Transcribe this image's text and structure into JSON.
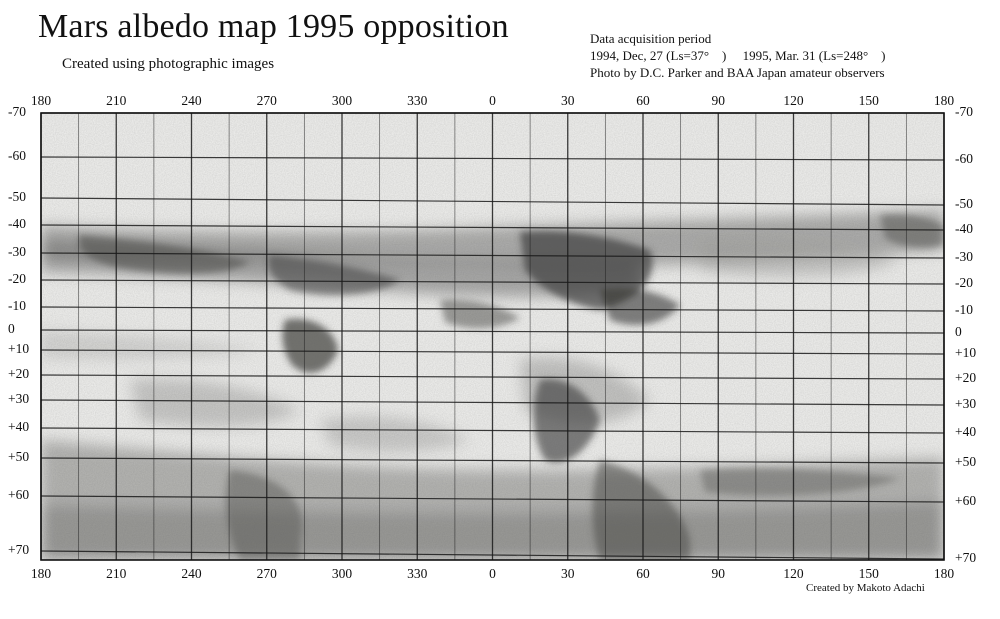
{
  "title": "Mars albedo map 1995   opposition",
  "subtitle": "Created using photographic images",
  "info": {
    "line1": "Data acquisition period",
    "line2": "1994, Dec, 27 (Ls=37°　) 　1995, Mar. 31 (Ls=248°　)",
    "line3": "Photo by D.C. Parker and BAA  Japan amateur observers"
  },
  "credit": "Created by Makoto Adachi",
  "map": {
    "longitude_labels": [
      "180",
      "210",
      "240",
      "270",
      "300",
      "330",
      "0",
      "30",
      "60",
      "90",
      "120",
      "150",
      "180"
    ],
    "left_latitude_labels": [
      "-70",
      "-60",
      "-50",
      "-40",
      "-30",
      "-20",
      "-10",
      "0",
      "+10",
      "+20",
      "+30",
      "+40",
      "+50",
      "+60",
      "+70"
    ],
    "right_latitude_labels": [
      "-70",
      "-60",
      "-50",
      "-40",
      "-30",
      "-20",
      "-10",
      "0",
      "+10",
      "+20",
      "+30",
      "+40",
      "+50",
      "+60",
      "+70"
    ],
    "latitude_values": [
      -70,
      -60,
      -50,
      -40,
      -30,
      -20,
      -10,
      0,
      10,
      20,
      30,
      40,
      50,
      60,
      70
    ],
    "style": "grayscale pencil-shaded albedo map with latitude/longitude grid",
    "colors": {
      "ink": "#111111",
      "grid": "#1a1a1a",
      "paper": "#f4f4f2"
    }
  }
}
